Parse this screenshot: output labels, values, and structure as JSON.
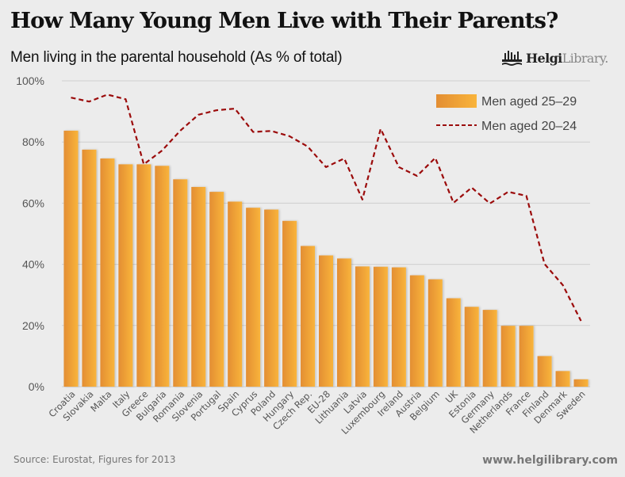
{
  "header": {
    "title": "How Many Young Men Live with Their Parents?",
    "subtitle": "Men living in the parental household (As % of total)",
    "logo_bold": "Helgi",
    "logo_light": "Library.",
    "logo_icon": "helgi-library-logo-icon"
  },
  "footer": {
    "source": "Source: Eurostat, Figures for 2013",
    "website": "www.helgilibrary.com"
  },
  "colors": {
    "bar_start": "#e38e33",
    "bar_end": "#f9b43b",
    "line": "#9b0b0b",
    "grid": "#cfcfcf",
    "background": "#ececec"
  },
  "chart_data": {
    "type": "bar",
    "title": "How Many Young Men Live with Their Parents?",
    "subtitle": "Men living in the parental household (As % of total)",
    "xlabel": "",
    "ylabel": "",
    "ylim": [
      0,
      100
    ],
    "yticks": [
      0,
      20,
      40,
      60,
      80,
      100
    ],
    "ytick_labels": [
      "0%",
      "20%",
      "40%",
      "60%",
      "80%",
      "100%"
    ],
    "grid": true,
    "legend": "top-right",
    "categories": [
      "Croatia",
      "Slovakia",
      "Malta",
      "Italy",
      "Greece",
      "Bulgaria",
      "Romania",
      "Slovenia",
      "Portugal",
      "Spain",
      "Cyprus",
      "Poland",
      "Hungary",
      "Czech Rep.",
      "EU-28",
      "Lithuania",
      "Latvia",
      "Luxembourg",
      "Ireland",
      "Austria",
      "Belgium",
      "UK",
      "Estonia",
      "Germany",
      "Netherlands",
      "France",
      "Finland",
      "Denmark",
      "Sweden"
    ],
    "series": [
      {
        "name": "Men aged 25–29",
        "type": "bar",
        "values": [
          83.7,
          77.5,
          74.6,
          72.7,
          72.7,
          72.2,
          67.8,
          65.3,
          63.7,
          60.5,
          58.5,
          57.9,
          54.2,
          46.0,
          42.9,
          41.9,
          39.3,
          39.2,
          39.0,
          36.4,
          35.1,
          28.9,
          26.1,
          25.1,
          19.9,
          19.9,
          10.0,
          5.1,
          2.4
        ]
      },
      {
        "name": "Men aged 20–24",
        "type": "line",
        "style": "dashed",
        "values": [
          94.5,
          93.2,
          95.5,
          94.0,
          72.7,
          77.2,
          83.7,
          88.9,
          90.4,
          90.9,
          83.3,
          83.6,
          81.9,
          78.5,
          71.8,
          74.6,
          61.2,
          84.3,
          71.8,
          68.9,
          74.8,
          60.1,
          65.1,
          59.9,
          63.7,
          62.4,
          40.1,
          33.2,
          21.5
        ]
      }
    ]
  }
}
